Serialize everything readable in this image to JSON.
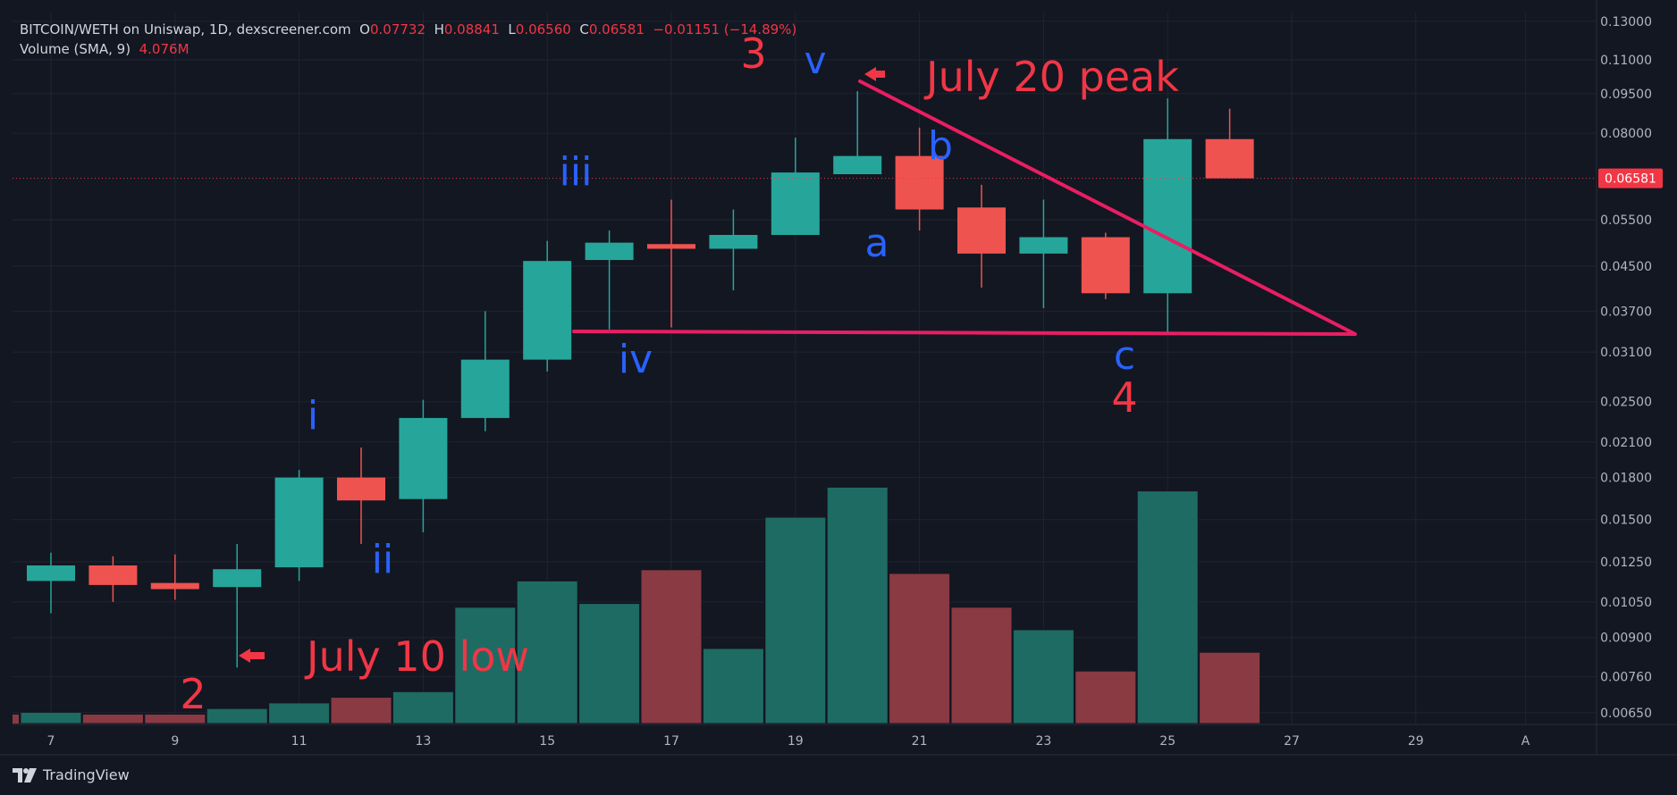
{
  "header": {
    "symbol": "BITCOIN/WETH on Uniswap, 1D, dexscreener.com",
    "o_label": "O",
    "o_value": "0.07732",
    "h_label": "H",
    "h_value": "0.08841",
    "l_label": "L",
    "l_value": "0.06560",
    "c_label": "C",
    "c_value": "0.06581",
    "change": "−0.01151 (−14.89%)",
    "volume_label": "Volume (SMA, 9)",
    "volume_value": "4.076M"
  },
  "brand": "TradingView",
  "colors": {
    "background": "#131722",
    "up": "#26a69a",
    "down": "#ef5350",
    "annotation_red": "#f23645",
    "annotation_blue": "#2962ff",
    "trendline": "#e91e63",
    "price_tag": "#f23645"
  },
  "chart_data": {
    "type": "candlestick",
    "price_scale": "log",
    "ylim": [
      0.0062,
      0.135
    ],
    "current_price": "0.06581",
    "x_tick_labels": [
      "7",
      "9",
      "11",
      "13",
      "15",
      "17",
      "19",
      "21",
      "23",
      "25",
      "27",
      "29",
      "A"
    ],
    "y_tick_labels": [
      "0.13000",
      "0.11000",
      "0.09500",
      "0.08000",
      "0.06581",
      "0.05500",
      "0.04500",
      "0.03700",
      "0.03100",
      "0.02500",
      "0.02100",
      "0.01800",
      "0.01500",
      "0.01250",
      "0.01050",
      "0.00900",
      "0.00760",
      "0.00650"
    ],
    "candles": [
      {
        "day": 7,
        "open": 0.0115,
        "high": 0.013,
        "low": 0.01,
        "close": 0.0123,
        "volume": 0.03
      },
      {
        "day": 8,
        "open": 0.0123,
        "high": 0.0128,
        "low": 0.0105,
        "close": 0.0113,
        "volume": 0.025
      },
      {
        "day": 9,
        "open": 0.0114,
        "high": 0.0129,
        "low": 0.0106,
        "close": 0.0111,
        "volume": 0.025
      },
      {
        "day": 10,
        "open": 0.0112,
        "high": 0.0135,
        "low": 0.0079,
        "close": 0.0121,
        "volume": 0.04
      },
      {
        "day": 11,
        "open": 0.0122,
        "high": 0.0186,
        "low": 0.0115,
        "close": 0.018,
        "volume": 0.055
      },
      {
        "day": 12,
        "open": 0.018,
        "high": 0.0205,
        "low": 0.0135,
        "close": 0.0163,
        "volume": 0.07
      },
      {
        "day": 13,
        "open": 0.0164,
        "high": 0.0252,
        "low": 0.0142,
        "close": 0.0233,
        "volume": 0.085
      },
      {
        "day": 14,
        "open": 0.0233,
        "high": 0.037,
        "low": 0.022,
        "close": 0.03,
        "volume": 0.31
      },
      {
        "day": 15,
        "open": 0.03,
        "high": 0.0502,
        "low": 0.0285,
        "close": 0.046,
        "volume": 0.38
      },
      {
        "day": 16,
        "open": 0.0462,
        "high": 0.0525,
        "low": 0.0342,
        "close": 0.0498,
        "volume": 0.32
      },
      {
        "day": 17,
        "open": 0.0495,
        "high": 0.06,
        "low": 0.0345,
        "close": 0.0485,
        "volume": 0.41
      },
      {
        "day": 18,
        "open": 0.0485,
        "high": 0.0575,
        "low": 0.0405,
        "close": 0.0515,
        "volume": 0.2
      },
      {
        "day": 19,
        "open": 0.0515,
        "high": 0.0785,
        "low": 0.0515,
        "close": 0.0675,
        "volume": 0.55
      },
      {
        "day": 20,
        "open": 0.067,
        "high": 0.096,
        "low": 0.067,
        "close": 0.0725,
        "volume": 0.63
      },
      {
        "day": 21,
        "open": 0.0725,
        "high": 0.082,
        "low": 0.0525,
        "close": 0.0575,
        "volume": 0.4
      },
      {
        "day": 22,
        "open": 0.058,
        "high": 0.064,
        "low": 0.041,
        "close": 0.0475,
        "volume": 0.31
      },
      {
        "day": 23,
        "open": 0.0475,
        "high": 0.06,
        "low": 0.0375,
        "close": 0.051,
        "volume": 0.25
      },
      {
        "day": 24,
        "open": 0.051,
        "high": 0.052,
        "low": 0.039,
        "close": 0.04,
        "volume": 0.14
      },
      {
        "day": 25,
        "open": 0.04,
        "high": 0.093,
        "low": 0.0335,
        "close": 0.078,
        "volume": 0.62
      },
      {
        "day": 26,
        "open": 0.078,
        "high": 0.089,
        "low": 0.0658,
        "close": 0.0658,
        "volume": 0.19
      }
    ],
    "annotations": [
      {
        "text": "3",
        "color": "red"
      },
      {
        "text": "v",
        "color": "blue"
      },
      {
        "text": "July 20 peak",
        "color": "red"
      },
      {
        "text": "b",
        "color": "blue"
      },
      {
        "text": "iii",
        "color": "blue"
      },
      {
        "text": "a",
        "color": "blue"
      },
      {
        "text": "iv",
        "color": "blue"
      },
      {
        "text": "c",
        "color": "blue"
      },
      {
        "text": "4",
        "color": "red"
      },
      {
        "text": "i",
        "color": "blue"
      },
      {
        "text": "ii",
        "color": "blue"
      },
      {
        "text": "July 10 low",
        "color": "red"
      },
      {
        "text": "2",
        "color": "red"
      }
    ]
  }
}
